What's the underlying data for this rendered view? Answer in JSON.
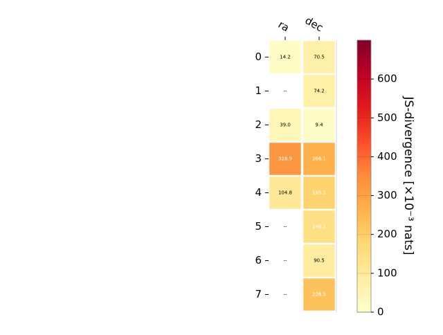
{
  "chart_data": {
    "type": "heatmap",
    "columns": [
      "ra",
      "dec"
    ],
    "rows": [
      "0",
      "1",
      "2",
      "3",
      "4",
      "5",
      "6",
      "7"
    ],
    "values": [
      [
        14.2,
        70.5
      ],
      [
        null,
        74.2
      ],
      [
        39.0,
        9.4
      ],
      [
        328.9,
        268.1
      ],
      [
        104.8,
        185.1
      ],
      [
        null,
        146.1
      ],
      [
        null,
        90.5
      ],
      [
        null,
        226.5
      ]
    ],
    "missing_label": "--",
    "colorbar": {
      "label": "JS-divergence [×10⁻³ nats]",
      "range": [
        0,
        700
      ],
      "ticks": [
        "0",
        "100",
        "200",
        "300",
        "400",
        "500",
        "600"
      ],
      "colormap": "YlOrRd"
    },
    "grid": false
  }
}
